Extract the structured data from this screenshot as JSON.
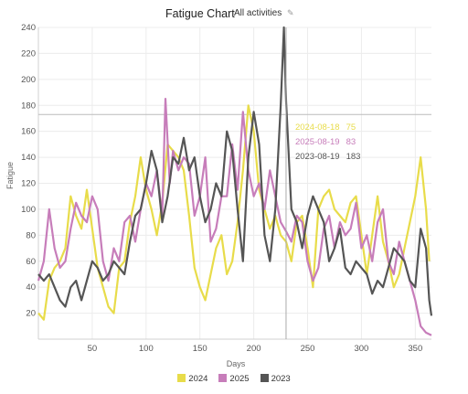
{
  "header": {
    "title": "Fatigue Chart",
    "filter_label": "All activities",
    "edit_icon": "pencil-icon"
  },
  "chart_data": {
    "type": "line",
    "xlabel": "Days",
    "ylabel": "Fatigue",
    "xlim": [
      0,
      365
    ],
    "ylim": [
      0,
      240
    ],
    "xticks": [
      50,
      100,
      150,
      200,
      250,
      300,
      350
    ],
    "yticks": [
      20,
      40,
      60,
      80,
      100,
      120,
      140,
      160,
      180,
      200,
      220,
      240
    ],
    "grid": true,
    "legend_position": "bottom",
    "series": [
      {
        "name": "2024",
        "color": "#e8dc4a",
        "points": [
          [
            0,
            20
          ],
          [
            5,
            15
          ],
          [
            10,
            45
          ],
          [
            15,
            55
          ],
          [
            20,
            60
          ],
          [
            25,
            70
          ],
          [
            30,
            110
          ],
          [
            35,
            95
          ],
          [
            40,
            85
          ],
          [
            45,
            115
          ],
          [
            50,
            85
          ],
          [
            55,
            55
          ],
          [
            60,
            40
          ],
          [
            65,
            25
          ],
          [
            70,
            20
          ],
          [
            75,
            55
          ],
          [
            80,
            60
          ],
          [
            85,
            90
          ],
          [
            90,
            110
          ],
          [
            95,
            140
          ],
          [
            100,
            115
          ],
          [
            105,
            100
          ],
          [
            110,
            80
          ],
          [
            115,
            105
          ],
          [
            120,
            150
          ],
          [
            125,
            145
          ],
          [
            130,
            140
          ],
          [
            135,
            130
          ],
          [
            140,
            95
          ],
          [
            145,
            55
          ],
          [
            150,
            40
          ],
          [
            155,
            30
          ],
          [
            160,
            50
          ],
          [
            165,
            70
          ],
          [
            170,
            80
          ],
          [
            175,
            50
          ],
          [
            180,
            60
          ],
          [
            185,
            90
          ],
          [
            190,
            130
          ],
          [
            195,
            180
          ],
          [
            200,
            160
          ],
          [
            205,
            115
          ],
          [
            210,
            100
          ],
          [
            215,
            85
          ],
          [
            220,
            95
          ],
          [
            225,
            80
          ],
          [
            230,
            75
          ],
          [
            235,
            60
          ],
          [
            240,
            90
          ],
          [
            245,
            95
          ],
          [
            250,
            70
          ],
          [
            255,
            40
          ],
          [
            260,
            100
          ],
          [
            265,
            110
          ],
          [
            270,
            115
          ],
          [
            275,
            100
          ],
          [
            280,
            95
          ],
          [
            285,
            90
          ],
          [
            290,
            105
          ],
          [
            295,
            110
          ],
          [
            300,
            80
          ],
          [
            305,
            50
          ],
          [
            310,
            80
          ],
          [
            315,
            110
          ],
          [
            320,
            75
          ],
          [
            325,
            60
          ],
          [
            330,
            40
          ],
          [
            335,
            50
          ],
          [
            340,
            70
          ],
          [
            345,
            90
          ],
          [
            350,
            110
          ],
          [
            355,
            140
          ],
          [
            360,
            100
          ],
          [
            363,
            60
          ]
        ]
      },
      {
        "name": "2025",
        "color": "#c77dba",
        "points": [
          [
            0,
            45
          ],
          [
            5,
            60
          ],
          [
            10,
            100
          ],
          [
            15,
            70
          ],
          [
            20,
            55
          ],
          [
            25,
            60
          ],
          [
            30,
            85
          ],
          [
            35,
            105
          ],
          [
            40,
            95
          ],
          [
            45,
            90
          ],
          [
            50,
            110
          ],
          [
            55,
            100
          ],
          [
            60,
            60
          ],
          [
            65,
            45
          ],
          [
            70,
            70
          ],
          [
            75,
            60
          ],
          [
            80,
            90
          ],
          [
            85,
            95
          ],
          [
            90,
            75
          ],
          [
            95,
            100
          ],
          [
            100,
            120
          ],
          [
            105,
            110
          ],
          [
            110,
            130
          ],
          [
            115,
            95
          ],
          [
            118,
            185
          ],
          [
            122,
            120
          ],
          [
            125,
            145
          ],
          [
            130,
            130
          ],
          [
            135,
            140
          ],
          [
            140,
            135
          ],
          [
            145,
            95
          ],
          [
            150,
            110
          ],
          [
            155,
            140
          ],
          [
            160,
            75
          ],
          [
            165,
            85
          ],
          [
            170,
            110
          ],
          [
            175,
            110
          ],
          [
            180,
            150
          ],
          [
            185,
            115
          ],
          [
            190,
            175
          ],
          [
            195,
            130
          ],
          [
            200,
            110
          ],
          [
            205,
            120
          ],
          [
            210,
            100
          ],
          [
            215,
            130
          ],
          [
            220,
            110
          ],
          [
            225,
            90
          ],
          [
            230,
            83
          ],
          [
            235,
            75
          ],
          [
            240,
            95
          ],
          [
            245,
            90
          ],
          [
            250,
            60
          ],
          [
            255,
            45
          ],
          [
            260,
            55
          ],
          [
            265,
            85
          ],
          [
            270,
            95
          ],
          [
            275,
            70
          ],
          [
            280,
            90
          ],
          [
            285,
            80
          ],
          [
            290,
            85
          ],
          [
            295,
            105
          ],
          [
            300,
            70
          ],
          [
            305,
            80
          ],
          [
            310,
            60
          ],
          [
            315,
            90
          ],
          [
            320,
            100
          ],
          [
            325,
            60
          ],
          [
            330,
            50
          ],
          [
            335,
            75
          ],
          [
            340,
            60
          ],
          [
            345,
            45
          ],
          [
            350,
            30
          ],
          [
            355,
            10
          ],
          [
            360,
            5
          ],
          [
            365,
            3
          ]
        ]
      },
      {
        "name": "2023",
        "color": "#555555",
        "points": [
          [
            0,
            50
          ],
          [
            5,
            45
          ],
          [
            10,
            50
          ],
          [
            15,
            40
          ],
          [
            20,
            30
          ],
          [
            25,
            25
          ],
          [
            30,
            40
          ],
          [
            35,
            45
          ],
          [
            40,
            30
          ],
          [
            45,
            45
          ],
          [
            50,
            60
          ],
          [
            55,
            55
          ],
          [
            60,
            45
          ],
          [
            65,
            50
          ],
          [
            70,
            60
          ],
          [
            75,
            55
          ],
          [
            80,
            50
          ],
          [
            85,
            75
          ],
          [
            90,
            95
          ],
          [
            95,
            100
          ],
          [
            100,
            120
          ],
          [
            105,
            145
          ],
          [
            110,
            130
          ],
          [
            115,
            90
          ],
          [
            120,
            110
          ],
          [
            125,
            140
          ],
          [
            130,
            135
          ],
          [
            135,
            155
          ],
          [
            140,
            130
          ],
          [
            145,
            140
          ],
          [
            150,
            110
          ],
          [
            155,
            90
          ],
          [
            160,
            100
          ],
          [
            165,
            120
          ],
          [
            170,
            110
          ],
          [
            175,
            160
          ],
          [
            180,
            145
          ],
          [
            185,
            100
          ],
          [
            190,
            60
          ],
          [
            195,
            140
          ],
          [
            200,
            175
          ],
          [
            205,
            150
          ],
          [
            210,
            80
          ],
          [
            215,
            60
          ],
          [
            220,
            100
          ],
          [
            225,
            180
          ],
          [
            228,
            240
          ],
          [
            230,
            183
          ],
          [
            235,
            100
          ],
          [
            240,
            90
          ],
          [
            245,
            70
          ],
          [
            250,
            95
          ],
          [
            255,
            110
          ],
          [
            260,
            100
          ],
          [
            265,
            90
          ],
          [
            270,
            60
          ],
          [
            275,
            70
          ],
          [
            280,
            85
          ],
          [
            285,
            55
          ],
          [
            290,
            50
          ],
          [
            295,
            60
          ],
          [
            300,
            55
          ],
          [
            305,
            50
          ],
          [
            310,
            35
          ],
          [
            315,
            45
          ],
          [
            320,
            40
          ],
          [
            325,
            55
          ],
          [
            330,
            70
          ],
          [
            335,
            65
          ],
          [
            340,
            60
          ],
          [
            345,
            45
          ],
          [
            350,
            40
          ],
          [
            355,
            85
          ],
          [
            360,
            70
          ],
          [
            363,
            30
          ],
          [
            365,
            18
          ]
        ]
      }
    ],
    "cursor_x": 230,
    "tooltip": [
      {
        "date": "2024-08-18",
        "value": "75",
        "color": "#e8dc4a"
      },
      {
        "date": "2025-08-19",
        "value": "83",
        "color": "#c77dba"
      },
      {
        "date": "2023-08-19",
        "value": "183",
        "color": "#555555"
      }
    ],
    "reference_line_y": 173
  }
}
